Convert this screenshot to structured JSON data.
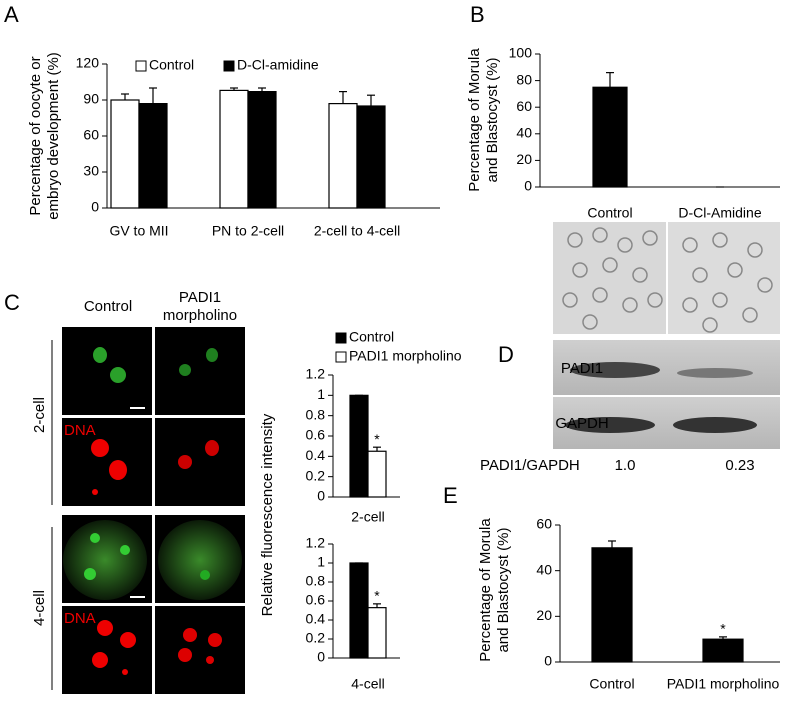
{
  "panel_labels": [
    "A",
    "B",
    "C",
    "D",
    "E"
  ],
  "chart_data": [
    {
      "type": "bar",
      "y_label": "Percentage of oocyte or embryo development (%)",
      "categories": [
        "GV to MII",
        "PN to 2-cell",
        "2-cell to 4-cell"
      ],
      "series": [
        {
          "name": "Control",
          "color": "#ffffff",
          "values": [
            90,
            98,
            87
          ],
          "errors": [
            5,
            2,
            10
          ]
        },
        {
          "name": "D-Cl-amidine",
          "color": "#000000",
          "values": [
            87,
            97,
            85
          ],
          "errors": [
            13,
            3,
            9
          ]
        }
      ],
      "ylim": [
        0,
        120
      ],
      "yticks": [
        0,
        30,
        60,
        90,
        120
      ]
    },
    {
      "type": "bar",
      "y_label": "Percentage of Morula and Blastocyst (%)",
      "categories": [
        "Control",
        "D-Cl-Amidine"
      ],
      "series": [
        {
          "color": "#000000",
          "values": [
            75,
            0
          ],
          "errors": [
            11,
            0
          ]
        }
      ],
      "ylim": [
        0,
        100
      ],
      "yticks": [
        0,
        20,
        40,
        60,
        80,
        100
      ]
    },
    {
      "type": "bar",
      "y_label": "Relative fluorescence intensity",
      "categories": [
        "2-cell"
      ],
      "series": [
        {
          "name": "Control",
          "color": "#000000",
          "values": [
            1
          ],
          "errors": [
            0
          ]
        },
        {
          "name": "PADI1 morpholino",
          "color": "#ffffff",
          "values": [
            0.45
          ],
          "errors": [
            0.04
          ]
        }
      ],
      "annotation": "*",
      "ylim": [
        0,
        1.2
      ],
      "yticks": [
        0,
        0.2,
        0.4,
        0.6,
        0.8,
        1,
        1.2
      ]
    },
    {
      "type": "bar",
      "categories": [
        "4-cell"
      ],
      "series": [
        {
          "color": "#000000",
          "values": [
            1
          ],
          "errors": [
            0
          ]
        },
        {
          "color": "#ffffff",
          "values": [
            0.53
          ],
          "errors": [
            0.04
          ]
        }
      ],
      "annotation": "*",
      "ylim": [
        0,
        1.2
      ],
      "yticks": [
        0,
        0.2,
        0.4,
        0.6,
        0.8,
        1,
        1.2
      ]
    },
    {
      "type": "bar",
      "y_label": "Percentage of Morula and Blastocyst (%)",
      "categories": [
        "Control",
        "PADI1 morpholino"
      ],
      "series": [
        {
          "color": "#000000",
          "values": [
            50,
            10
          ],
          "errors": [
            3,
            1
          ]
        }
      ],
      "annotation": "*",
      "ylim": [
        0,
        60
      ],
      "yticks": [
        0,
        20,
        40,
        60
      ]
    }
  ],
  "micrographs": {
    "columns": [
      "Control",
      "PADI1 morpholino"
    ],
    "rows": [
      "2-cell",
      "4-cell"
    ],
    "stains": [
      "DNA",
      "DNA"
    ]
  },
  "blot": {
    "bands": [
      "PADI1",
      "GAPDH"
    ],
    "ratio_label": "PADI1/GAPDH",
    "ratios": [
      "1.0",
      "0.23"
    ]
  }
}
